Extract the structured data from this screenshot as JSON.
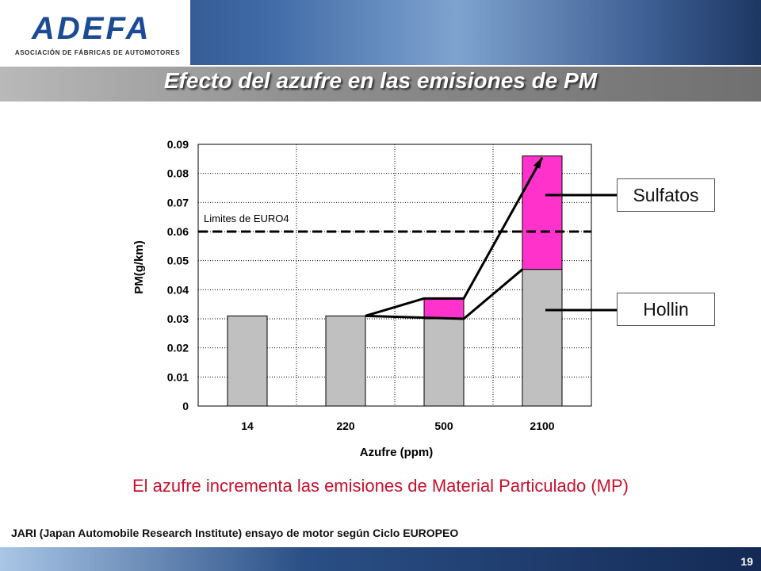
{
  "header": {
    "logo_text": "ADEFA",
    "logo_subtitle": "ASOCIACIÓN DE FÁBRICAS DE AUTOMOTORES",
    "title": "Efecto del azufre en las emisiones de PM"
  },
  "chart_data": {
    "type": "bar",
    "stacked": true,
    "categories": [
      "14",
      "220",
      "500",
      "2100"
    ],
    "series": [
      {
        "name": "Hollin",
        "values": [
          0.031,
          0.031,
          0.03,
          0.047
        ],
        "color": "#c0c0c0"
      },
      {
        "name": "Sulfatos",
        "values": [
          0,
          0,
          0.007,
          0.039
        ],
        "color": "#ff33cc"
      }
    ],
    "xlabel": "Azufre (ppm)",
    "ylabel": "PM(g/km)",
    "ylim": [
      0,
      0.09
    ],
    "yticks": [
      "0",
      "0.01",
      "0.02",
      "0.03",
      "0.04",
      "0.05",
      "0.06",
      "0.07",
      "0.08",
      "0.09"
    ],
    "grid": true,
    "reference_line": {
      "label": "Limites de EURO4",
      "value": 0.06
    },
    "callouts": [
      "Sulfatos",
      "Hollin"
    ]
  },
  "conclusion": "El azufre incrementa las emisiones de Material Particulado (MP)",
  "source": "JARI (Japan Automobile Research Institute) ensayo de motor según Ciclo EUROPEO",
  "page_number": "19"
}
